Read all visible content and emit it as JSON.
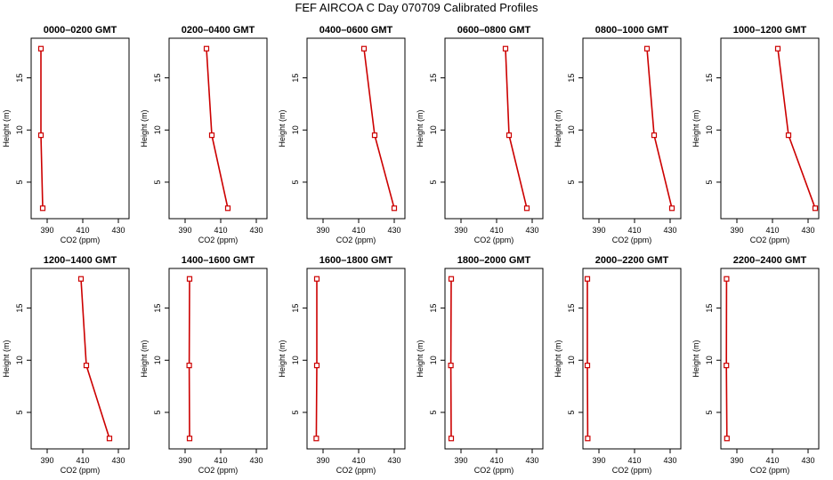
{
  "figure_title": "FEF AIRCOA C  Day 070709  Calibrated Profiles",
  "chart_data": [
    {
      "type": "line",
      "title": "0000–0200 GMT",
      "xlabel": "CO2 (ppm)",
      "ylabel": "Height (m)",
      "xlim": [
        381,
        436
      ],
      "ylim": [
        1.5,
        18.8
      ],
      "x_ticks": [
        390,
        410,
        430
      ],
      "y_ticks": [
        5,
        10,
        15
      ],
      "series": [
        {
          "x": [
            386.5,
            386.5,
            387.5
          ],
          "y": [
            17.8,
            9.5,
            2.5
          ]
        }
      ],
      "line_color": "#cc0000",
      "marker": "open-square"
    },
    {
      "type": "line",
      "title": "0200–0400 GMT",
      "xlabel": "CO2 (ppm)",
      "ylabel": "Height (m)",
      "xlim": [
        381,
        436
      ],
      "ylim": [
        1.5,
        18.8
      ],
      "x_ticks": [
        390,
        410,
        430
      ],
      "y_ticks": [
        5,
        10,
        15
      ],
      "series": [
        {
          "x": [
            402,
            405,
            414
          ],
          "y": [
            17.8,
            9.5,
            2.5
          ]
        }
      ],
      "line_color": "#cc0000",
      "marker": "open-square"
    },
    {
      "type": "line",
      "title": "0400–0600 GMT",
      "xlabel": "CO2 (ppm)",
      "ylabel": "Height (m)",
      "xlim": [
        381,
        436
      ],
      "ylim": [
        1.5,
        18.8
      ],
      "x_ticks": [
        390,
        410,
        430
      ],
      "y_ticks": [
        5,
        10,
        15
      ],
      "series": [
        {
          "x": [
            413,
            419,
            430
          ],
          "y": [
            17.8,
            9.5,
            2.5
          ]
        }
      ],
      "line_color": "#cc0000",
      "marker": "open-square"
    },
    {
      "type": "line",
      "title": "0600–0800 GMT",
      "xlabel": "CO2 (ppm)",
      "ylabel": "Height (m)",
      "xlim": [
        381,
        436
      ],
      "ylim": [
        1.5,
        18.8
      ],
      "x_ticks": [
        390,
        410,
        430
      ],
      "y_ticks": [
        5,
        10,
        15
      ],
      "series": [
        {
          "x": [
            415,
            417,
            427
          ],
          "y": [
            17.8,
            9.5,
            2.5
          ]
        }
      ],
      "line_color": "#cc0000",
      "marker": "open-square"
    },
    {
      "type": "line",
      "title": "0800–1000 GMT",
      "xlabel": "CO2 (ppm)",
      "ylabel": "Height (m)",
      "xlim": [
        381,
        436
      ],
      "ylim": [
        1.5,
        18.8
      ],
      "x_ticks": [
        390,
        410,
        430
      ],
      "y_ticks": [
        5,
        10,
        15
      ],
      "series": [
        {
          "x": [
            417,
            421,
            431
          ],
          "y": [
            17.8,
            9.5,
            2.5
          ]
        }
      ],
      "line_color": "#cc0000",
      "marker": "open-square"
    },
    {
      "type": "line",
      "title": "1000–1200 GMT",
      "xlabel": "CO2 (ppm)",
      "ylabel": "Height (m)",
      "xlim": [
        381,
        436
      ],
      "ylim": [
        1.5,
        18.8
      ],
      "x_ticks": [
        390,
        410,
        430
      ],
      "y_ticks": [
        5,
        10,
        15
      ],
      "series": [
        {
          "x": [
            413,
            419,
            434
          ],
          "y": [
            17.8,
            9.5,
            2.5
          ]
        }
      ],
      "line_color": "#cc0000",
      "marker": "open-square"
    },
    {
      "type": "line",
      "title": "1200–1400 GMT",
      "xlabel": "CO2 (ppm)",
      "ylabel": "Height (m)",
      "xlim": [
        381,
        436
      ],
      "ylim": [
        1.5,
        18.8
      ],
      "x_ticks": [
        390,
        410,
        430
      ],
      "y_ticks": [
        5,
        10,
        15
      ],
      "series": [
        {
          "x": [
            409,
            412,
            425
          ],
          "y": [
            17.8,
            9.5,
            2.5
          ]
        }
      ],
      "line_color": "#cc0000",
      "marker": "open-square"
    },
    {
      "type": "line",
      "title": "1400–1600 GMT",
      "xlabel": "CO2 (ppm)",
      "ylabel": "Height (m)",
      "xlim": [
        381,
        436
      ],
      "ylim": [
        1.5,
        18.8
      ],
      "x_ticks": [
        390,
        410,
        430
      ],
      "y_ticks": [
        5,
        10,
        15
      ],
      "series": [
        {
          "x": [
            392.5,
            392.3,
            392.5
          ],
          "y": [
            17.8,
            9.5,
            2.5
          ]
        }
      ],
      "line_color": "#cc0000",
      "marker": "open-square"
    },
    {
      "type": "line",
      "title": "1600–1800 GMT",
      "xlabel": "CO2 (ppm)",
      "ylabel": "Height (m)",
      "xlim": [
        381,
        436
      ],
      "ylim": [
        1.5,
        18.8
      ],
      "x_ticks": [
        390,
        410,
        430
      ],
      "y_ticks": [
        5,
        10,
        15
      ],
      "series": [
        {
          "x": [
            386.5,
            386.5,
            386.2
          ],
          "y": [
            17.8,
            9.5,
            2.5
          ]
        }
      ],
      "line_color": "#cc0000",
      "marker": "open-square"
    },
    {
      "type": "line",
      "title": "1800–2000 GMT",
      "xlabel": "CO2 (ppm)",
      "ylabel": "Height (m)",
      "xlim": [
        381,
        436
      ],
      "ylim": [
        1.5,
        18.8
      ],
      "x_ticks": [
        390,
        410,
        430
      ],
      "y_ticks": [
        5,
        10,
        15
      ],
      "series": [
        {
          "x": [
            384.5,
            384.3,
            384.5
          ],
          "y": [
            17.8,
            9.5,
            2.5
          ]
        }
      ],
      "line_color": "#cc0000",
      "marker": "open-square"
    },
    {
      "type": "line",
      "title": "2000–2200 GMT",
      "xlabel": "CO2 (ppm)",
      "ylabel": "Height (m)",
      "xlim": [
        381,
        436
      ],
      "ylim": [
        1.5,
        18.8
      ],
      "x_ticks": [
        390,
        410,
        430
      ],
      "y_ticks": [
        5,
        10,
        15
      ],
      "series": [
        {
          "x": [
            383.5,
            383.5,
            383.7
          ],
          "y": [
            17.8,
            9.5,
            2.5
          ]
        }
      ],
      "line_color": "#cc0000",
      "marker": "open-square"
    },
    {
      "type": "line",
      "title": "2200–2400 GMT",
      "xlabel": "CO2 (ppm)",
      "ylabel": "Height (m)",
      "xlim": [
        381,
        436
      ],
      "ylim": [
        1.5,
        18.8
      ],
      "x_ticks": [
        390,
        410,
        430
      ],
      "y_ticks": [
        5,
        10,
        15
      ],
      "series": [
        {
          "x": [
            384.2,
            384.1,
            384.4
          ],
          "y": [
            17.8,
            9.5,
            2.5
          ]
        }
      ],
      "line_color": "#cc0000",
      "marker": "open-square"
    }
  ]
}
